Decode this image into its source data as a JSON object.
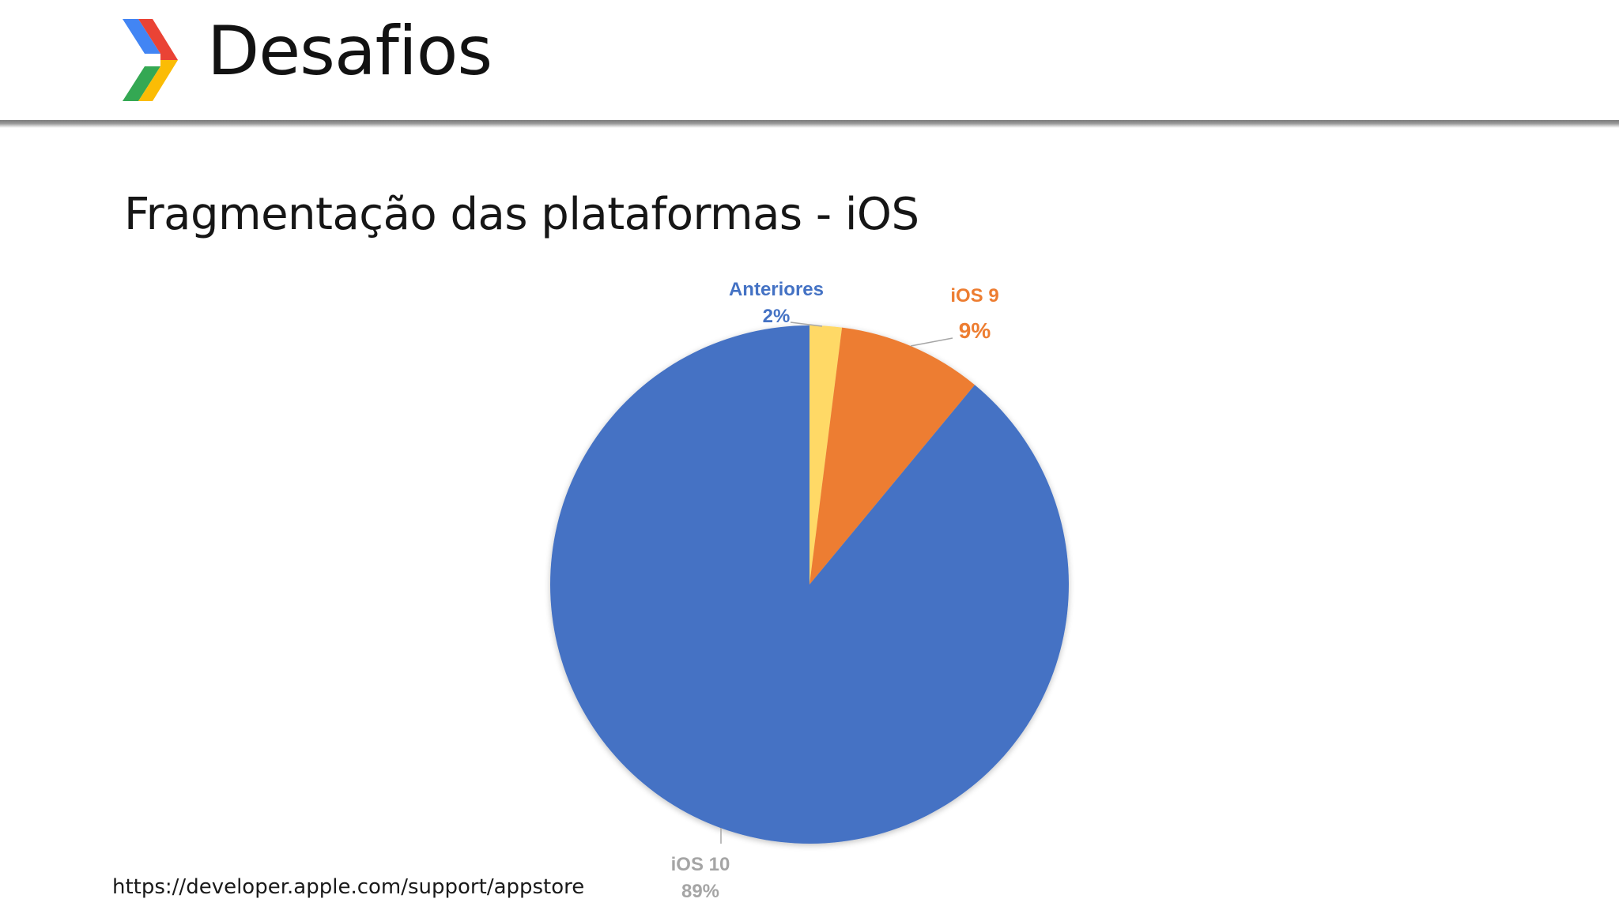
{
  "header": {
    "title": "Desafios",
    "logo_colors": [
      "#4285f4",
      "#ea4335",
      "#fbbc05",
      "#34a853"
    ]
  },
  "subtitle": "Fragmentação das plataformas - iOS",
  "source": "https://developer.apple.com/support/appstore",
  "chart_data": {
    "type": "pie",
    "title": "",
    "slices": [
      {
        "name": "Anteriores",
        "label": "Anteriores",
        "pct_label": "2%",
        "value": 2,
        "color": "#ffd966",
        "label_color": "#4472c4"
      },
      {
        "name": "iOS 9",
        "label": "iOS 9",
        "pct_label": "9%",
        "value": 9,
        "color": "#ed7d31",
        "label_color": "#ed7d31"
      },
      {
        "name": "iOS 10",
        "label": "iOS 10",
        "pct_label": "89%",
        "value": 89,
        "color": "#4472c4",
        "label_color": "#a5a5a5"
      }
    ],
    "start_angle": "12 o'clock",
    "direction": "clockwise"
  }
}
